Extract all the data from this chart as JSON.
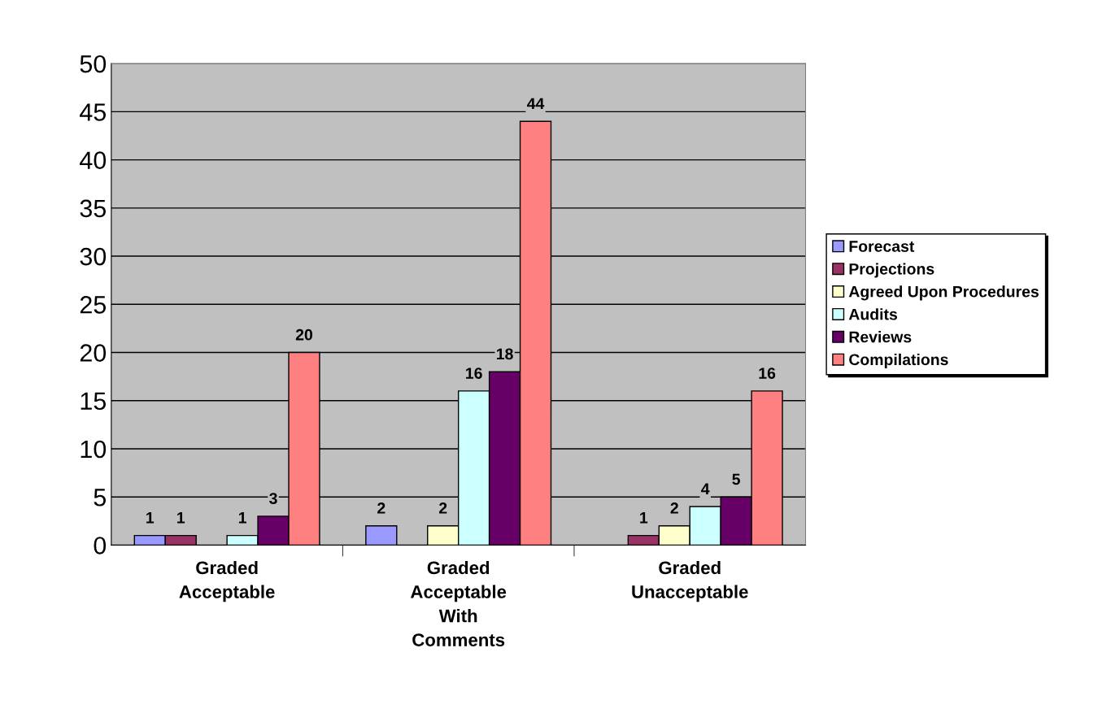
{
  "chart_data": {
    "type": "bar",
    "categories": [
      "Graded\nAcceptable",
      "Graded\nAcceptable\nWith\nComments",
      "Graded\nUnacceptable"
    ],
    "series": [
      {
        "name": "Forecast",
        "color": "#9999ff",
        "values": [
          1,
          2,
          null
        ],
        "value_labels": [
          "1",
          "2",
          null
        ]
      },
      {
        "name": "Projections",
        "color": "#993366",
        "values": [
          1,
          null,
          1
        ],
        "value_labels": [
          "1",
          null,
          "1"
        ]
      },
      {
        "name": "Agreed Upon Procedures",
        "color": "#ffffcc",
        "values": [
          null,
          2,
          2
        ],
        "value_labels": [
          null,
          "2",
          "2"
        ]
      },
      {
        "name": "Audits",
        "color": "#ccffff",
        "values": [
          1,
          16,
          4
        ],
        "value_labels": [
          "1",
          "16",
          "4"
        ]
      },
      {
        "name": "Reviews",
        "color": "#660066",
        "values": [
          3,
          18,
          5
        ],
        "value_labels": [
          "3",
          "18",
          "5"
        ]
      },
      {
        "name": "Compilations",
        "color": "#ff8080",
        "values": [
          20,
          44,
          16
        ],
        "value_labels": [
          "20",
          "44",
          "16"
        ]
      }
    ],
    "ylim": [
      0,
      50
    ],
    "yticks": [
      0,
      5,
      10,
      15,
      20,
      25,
      30,
      35,
      40,
      45,
      50
    ],
    "grid": "y",
    "legend": "right"
  }
}
